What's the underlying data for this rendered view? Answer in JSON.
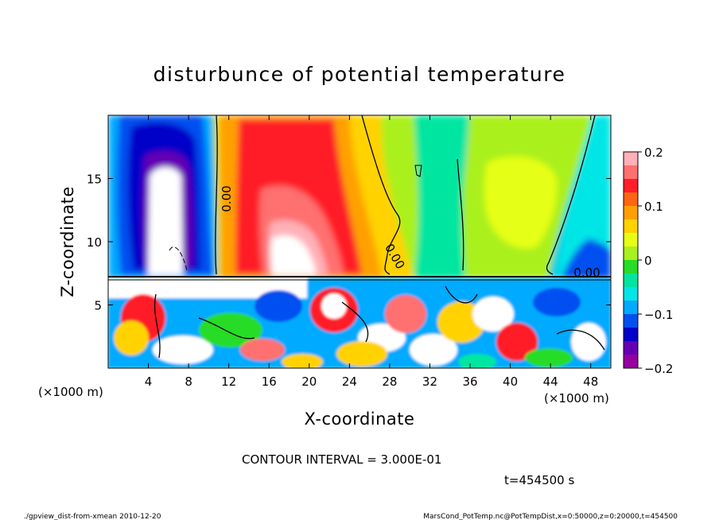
{
  "chart_data": {
    "type": "heatmap",
    "title": "disturbunce of potential temperature",
    "xlabel": "X-coordinate",
    "ylabel": "Z-coordinate",
    "x_unit": "(×1000 m)",
    "x_ticks": [
      "4",
      "8",
      "12",
      "16",
      "20",
      "24",
      "28",
      "32",
      "36",
      "40",
      "44",
      "48"
    ],
    "y_ticks": [
      "5",
      "10",
      "15"
    ],
    "xlim": [
      0,
      50
    ],
    "ylim": [
      0,
      20
    ],
    "colorbar": {
      "ticks": [
        "0.2",
        "0.1",
        "0",
        "−0.1",
        "−0.2"
      ],
      "range": [
        -0.2,
        0.2
      ],
      "colors": [
        "#ffb0b8",
        "#ff7070",
        "#ff1e28",
        "#ff6414",
        "#ffa000",
        "#ffd200",
        "#e6ff14",
        "#aaf01e",
        "#28dc28",
        "#00e6a0",
        "#00e6e6",
        "#00aaff",
        "#0050f0",
        "#0000c8",
        "#6400b4",
        "#9600a0"
      ]
    },
    "contour_labels": [
      "0.00",
      "0.00",
      "0.00"
    ],
    "contour_interval_text": "CONTOUR INTERVAL = 3.000E-01",
    "time_text": "t=454500 s",
    "grid": false
  },
  "footer": {
    "left": "./gpview_dist-from-xmean  2010-12-20",
    "right": "MarsCond_PotTemp.nc@PotTempDist,x=0:50000,z=0:20000,t=454500"
  }
}
